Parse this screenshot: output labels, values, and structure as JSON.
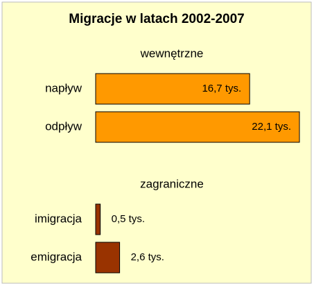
{
  "chart_data": {
    "type": "barh",
    "title": "Migracje w latach 2002-2007",
    "panels": [
      {
        "title": "wewnętrzne",
        "categories": [
          "napływ",
          "odpływ"
        ],
        "values": [
          16.7,
          22.1
        ],
        "value_labels": [
          "16,7 tys.",
          "22,1 tys."
        ],
        "color": "#ff9900"
      },
      {
        "title": "zagraniczne",
        "categories": [
          "imigracja",
          "emigracja"
        ],
        "values": [
          0.5,
          2.6
        ],
        "value_labels": [
          "0,5 tys.",
          "2,6 tys."
        ],
        "color": "#993300"
      }
    ]
  }
}
